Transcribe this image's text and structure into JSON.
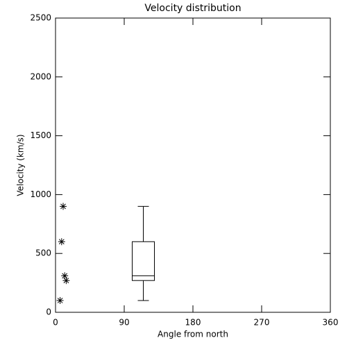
{
  "chart_data": {
    "type": "scatter",
    "title": "Velocity distribution",
    "xlabel": "Angle from north",
    "ylabel": "Velocity (km/s)",
    "x": [
      10,
      8,
      12,
      14,
      6
    ],
    "values": [
      900,
      600,
      310,
      270,
      100
    ],
    "box": {
      "x": 115,
      "min": 100,
      "q1": 270,
      "median": 310,
      "q3": 600,
      "max": 900
    },
    "xlim": [
      0,
      360
    ],
    "ylim": [
      0,
      2500
    ],
    "xticks": [
      0,
      90,
      180,
      270,
      360
    ],
    "yticks": [
      0,
      500,
      1000,
      1500,
      2000,
      2500
    ],
    "grid": false,
    "color": "#000000"
  }
}
